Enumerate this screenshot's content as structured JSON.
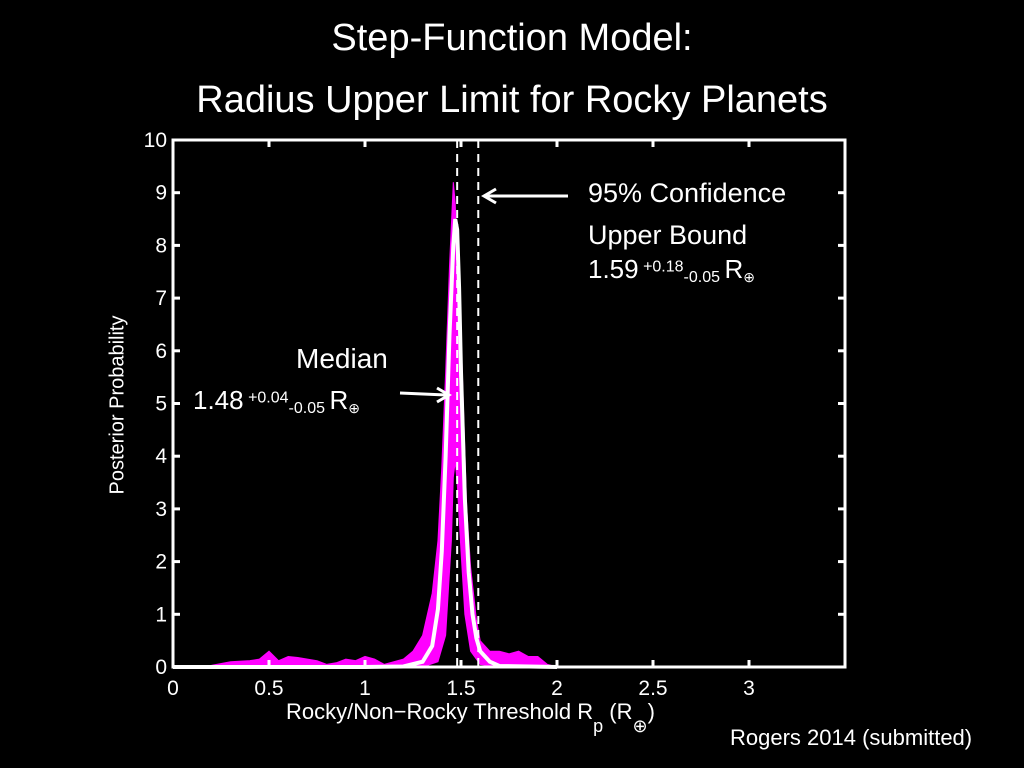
{
  "title": {
    "line1": "Step-Function Model:",
    "line2": "Radius Upper Limit for Rocky Planets"
  },
  "annotations": {
    "median_label": "Median",
    "median_value": "1.48",
    "median_plus": "+0.04",
    "median_minus": "-0.05",
    "median_unit": "R",
    "bound_line1": "95% Confidence",
    "bound_line2": "Upper Bound",
    "bound_value": "1.59",
    "bound_plus": "+0.18",
    "bound_minus": "-0.05",
    "bound_unit": "R",
    "credit": "Rogers 2014 (submitted)"
  },
  "colors": {
    "background": "#000000",
    "axes": "#ffffff",
    "posterior_band": "#ff00ff",
    "median_curve": "#ffffff"
  },
  "chart_data": {
    "type": "area",
    "title": "Step-Function Model: Radius Upper Limit for Rocky Planets",
    "xlabel": "Rocky/Non−Rocky Threshold R",
    "xlabel_sub": "p",
    "xlabel_unit": "(R",
    "xlabel_unit_close": ")",
    "ylabel": "Posterior Probability",
    "xlim": [
      0,
      3.5
    ],
    "ylim": [
      0,
      10
    ],
    "xticks": [
      0,
      0.5,
      1,
      1.5,
      2,
      2.5,
      3
    ],
    "xtick_labels": [
      "0",
      "0.5",
      "1",
      "1.5",
      "2",
      "2.5",
      "3"
    ],
    "yticks": [
      0,
      1,
      2,
      3,
      4,
      5,
      6,
      7,
      8,
      9,
      10
    ],
    "ytick_labels": [
      "0",
      "1",
      "2",
      "3",
      "4",
      "5",
      "6",
      "7",
      "8",
      "9",
      "10"
    ],
    "grid": false,
    "series": [
      {
        "kind": "band",
        "upper": {
          "x": [
            0,
            0.2,
            0.3,
            0.4,
            0.45,
            0.5,
            0.55,
            0.6,
            0.65,
            0.7,
            0.75,
            0.8,
            0.85,
            0.9,
            0.95,
            1.0,
            1.05,
            1.1,
            1.15,
            1.2,
            1.25,
            1.3,
            1.35,
            1.38,
            1.4,
            1.42,
            1.44,
            1.46,
            1.47,
            1.48,
            1.49,
            1.5,
            1.51,
            1.53,
            1.55,
            1.58,
            1.6,
            1.65,
            1.7,
            1.75,
            1.8,
            1.85,
            1.9,
            1.95,
            2.0
          ],
          "y": [
            0.02,
            0.03,
            0.1,
            0.12,
            0.15,
            0.3,
            0.12,
            0.2,
            0.18,
            0.15,
            0.12,
            0.05,
            0.08,
            0.15,
            0.12,
            0.2,
            0.15,
            0.05,
            0.1,
            0.15,
            0.3,
            0.6,
            1.4,
            2.4,
            3.8,
            5.6,
            7.6,
            9.2,
            8.8,
            7.6,
            6.8,
            6.4,
            5.2,
            3.0,
            1.9,
            0.9,
            0.5,
            0.3,
            0.3,
            0.25,
            0.3,
            0.2,
            0.2,
            0.05,
            0.0
          ]
        },
        "lower": {
          "x": [
            0,
            0.5,
            1.0,
            1.3,
            1.38,
            1.42,
            1.45,
            1.46,
            1.47,
            1.48,
            1.5,
            1.52,
            1.55,
            1.6,
            1.7,
            1.8,
            2.0
          ],
          "y": [
            0.0,
            0.0,
            0.0,
            0.0,
            0.1,
            0.6,
            2.4,
            3.6,
            3.9,
            3.5,
            2.2,
            1.0,
            0.3,
            0.05,
            0.0,
            0.0,
            0.0
          ]
        }
      },
      {
        "kind": "line",
        "x": [
          0,
          0.5,
          1.0,
          1.2,
          1.3,
          1.35,
          1.38,
          1.4,
          1.42,
          1.44,
          1.46,
          1.47,
          1.48,
          1.49,
          1.5,
          1.52,
          1.54,
          1.56,
          1.58,
          1.6,
          1.65,
          1.7,
          2.0
        ],
        "y": [
          0.0,
          0.0,
          0.0,
          0.01,
          0.1,
          0.4,
          1.1,
          2.2,
          4.0,
          6.3,
          8.0,
          8.5,
          8.3,
          7.2,
          5.6,
          3.2,
          1.8,
          1.0,
          0.55,
          0.3,
          0.1,
          0.02,
          0.0
        ]
      }
    ],
    "vlines": [
      {
        "x": 1.48,
        "style": "dashed"
      },
      {
        "x": 1.59,
        "style": "dashed"
      }
    ]
  }
}
